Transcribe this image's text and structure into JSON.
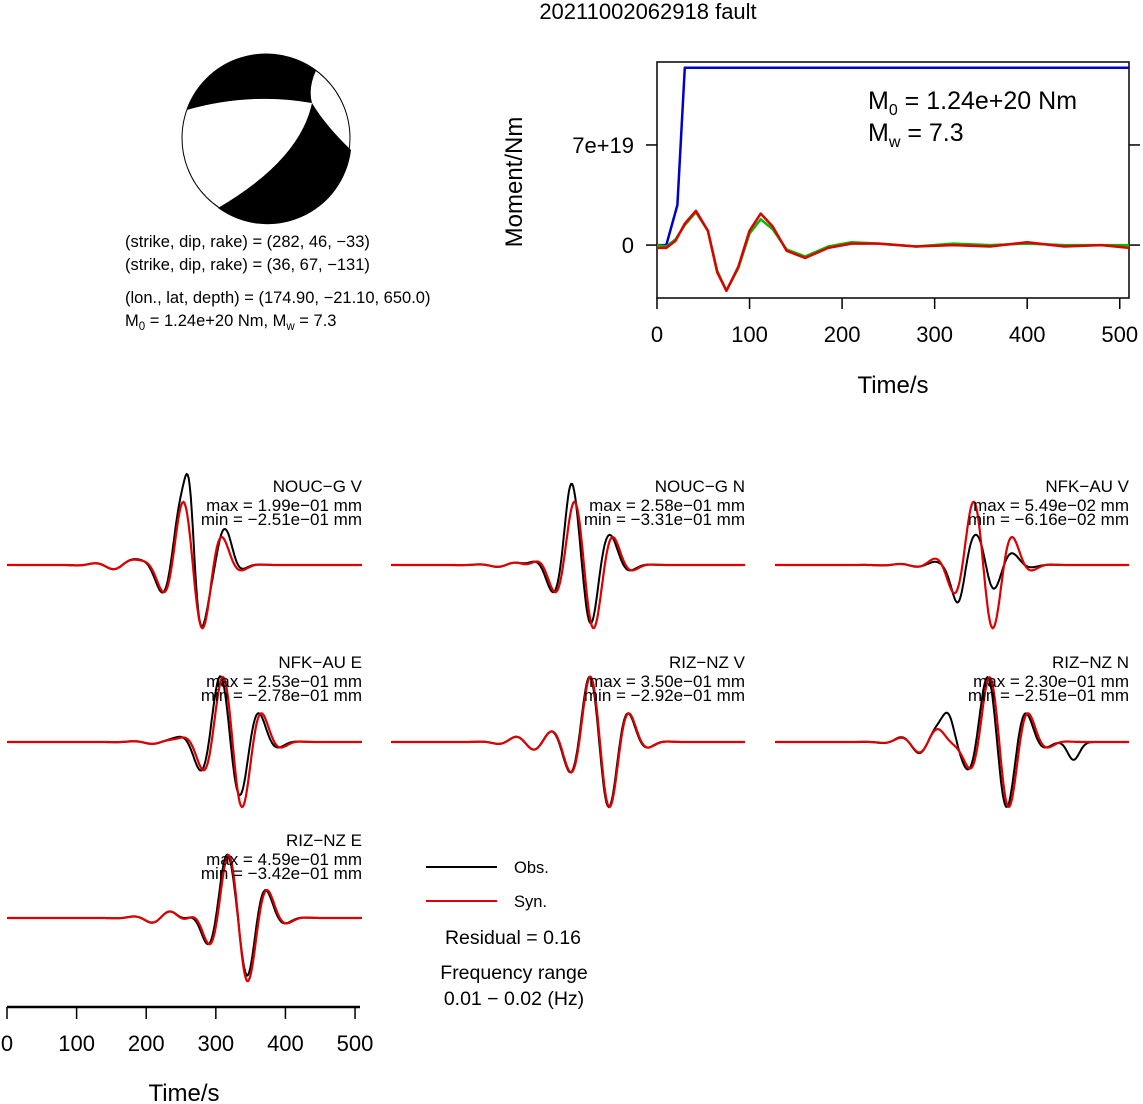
{
  "title": "20211002062918 fault",
  "mechanism": {
    "nodal_planes": [
      {
        "strike": 282,
        "dip": 46,
        "rake": -33
      },
      {
        "strike": 36,
        "dip": 67,
        "rake": -131
      }
    ],
    "lines": [
      "(strike, dip, rake) = (282, 46, −33)",
      "(strike, dip, rake) = (36, 67, −131)",
      "(lon., lat, depth) = (174.90, −21.10, 650.0)"
    ],
    "m0_line": {
      "prefix": "M",
      "sub0": "0",
      "mid": " = 1.24e+20 Nm, M",
      "subw": "w",
      "suffix": " = 7.3"
    },
    "colors": {
      "compression": "#000000",
      "dilatation": "#ffffff"
    }
  },
  "moment_panel": {
    "ylabel": "Moment/Nm",
    "xlabel": "Time/s",
    "yticks": [
      "0",
      "7e+19"
    ],
    "xticks": [
      "0",
      "100",
      "200",
      "300",
      "400",
      "500"
    ],
    "m0": {
      "sym": "M",
      "sub": "0",
      "text": " = 1.24e+20 Nm"
    },
    "mw": {
      "sym": "M",
      "sub": "w",
      "text": " = 7.3"
    },
    "colors": {
      "cumulative": "#0000cc",
      "stf_obs": "#00bb00",
      "stf_syn": "#dd0000"
    }
  },
  "traces": [
    {
      "label": "NOUC−G V",
      "max": "max = 1.99e−01 mm",
      "min": "min = −2.51e−01 mm"
    },
    {
      "label": "NOUC−G N",
      "max": "max = 2.58e−01 mm",
      "min": "min = −3.31e−01 mm"
    },
    {
      "label": "NFK−AU V",
      "max": "max = 5.49e−02 mm",
      "min": "min = −6.16e−02 mm"
    },
    {
      "label": "NFK−AU E",
      "max": "max = 2.53e−01 mm",
      "min": "min = −2.78e−01 mm"
    },
    {
      "label": "RIZ−NZ V",
      "max": "max = 3.50e−01 mm",
      "min": "min = −2.92e−01 mm"
    },
    {
      "label": "RIZ−NZ N",
      "max": "max = 2.30e−01 mm",
      "min": "min = −2.51e−01 mm"
    },
    {
      "label": "RIZ−NZ E",
      "max": "max = 4.59e−01 mm",
      "min": "min = −3.42e−01 mm"
    }
  ],
  "legend": {
    "obs": "Obs.",
    "syn": "Syn.",
    "obs_color": "#000000",
    "syn_color": "#dd0000"
  },
  "residual": "Residual = 0.16",
  "freq_title": "Frequency range",
  "freq_range": "0.01 − 0.02 (Hz)",
  "bottom_axis": {
    "xlabel": "Time/s",
    "xticks": [
      "0",
      "100",
      "200",
      "300",
      "400",
      "500"
    ]
  },
  "chart_data": [
    {
      "type": "line",
      "title": "",
      "xlabel": "Time/s",
      "ylabel": "Moment/Nm",
      "xlim": [
        0,
        510
      ],
      "ylim": [
        -3.7e+19,
        1.28e+20
      ],
      "series": [
        {
          "x": [
            0,
            10,
            22,
            30,
            510
          ],
          "values": [
            0,
            0,
            2.8e+19,
            1.24e+20,
            1.24e+20
          ]
        },
        {
          "x": [
            0,
            10,
            20,
            30,
            42,
            55,
            65,
            75,
            88,
            100,
            112,
            125,
            140,
            160,
            185,
            210,
            240,
            280,
            320,
            360,
            400,
            440,
            480,
            510
          ],
          "values": [
            0,
            -1e+18,
            4e+18,
            1.4e+19,
            2.3e+19,
            1e+19,
            -1.8e+19,
            -3.2e+19,
            -1.6e+19,
            8e+18,
            1.8e+19,
            1.1e+19,
            -3e+18,
            -8e+18,
            -1e+18,
            2e+18,
            1e+18,
            -1e+18,
            1e+18,
            0,
            1e+18,
            0,
            0,
            0
          ]
        },
        {
          "x": [
            0,
            10,
            20,
            30,
            42,
            55,
            65,
            75,
            88,
            100,
            112,
            125,
            140,
            160,
            185,
            210,
            240,
            280,
            320,
            360,
            400,
            440,
            480,
            510
          ],
          "values": [
            -2e+18,
            -2e+18,
            3e+18,
            1.5e+19,
            2.4e+19,
            1e+19,
            -1.9e+19,
            -3.2e+19,
            -1.5e+19,
            1e+19,
            2.2e+19,
            1.3e+19,
            -4e+18,
            -9e+18,
            -2e+18,
            1e+18,
            1e+18,
            -1e+18,
            0,
            -1e+18,
            2e+18,
            -1e+18,
            0,
            -2e+18
          ]
        }
      ]
    },
    {
      "type": "line",
      "title": "",
      "xlabel": "Time/s",
      "ylabel": "",
      "xlim": [
        0,
        510
      ],
      "xticks": [
        0,
        100,
        200,
        300,
        400,
        500
      ]
    }
  ]
}
